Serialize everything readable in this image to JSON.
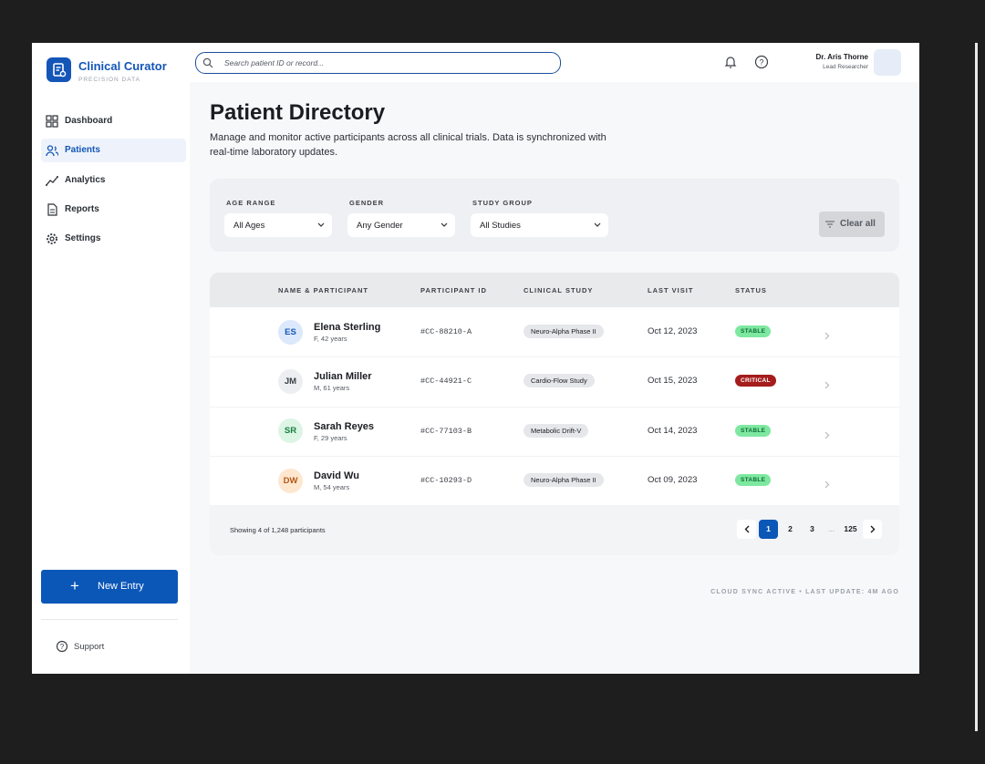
{
  "sidebar": {
    "brand": "Clinical Curator",
    "tagline": "PRECISION DATA",
    "nav": [
      "Dashboard",
      "Patients",
      "Analytics",
      "Reports",
      "Settings"
    ],
    "new_entry": "New Entry",
    "support": "Support"
  },
  "header": {
    "search_placeholder": "Search patient ID or record...",
    "user_name": "Dr. Aris Thorne",
    "user_role": "Lead Researcher"
  },
  "page": {
    "title": "Patient Directory",
    "description": "Manage and monitor active participants across all clinical trials. Data is synchronized with real-time laboratory updates."
  },
  "filters": [
    {
      "label": "AGE RANGE",
      "value": "All Ages"
    },
    {
      "label": "GENDER",
      "value": "Any Gender"
    },
    {
      "label": "STUDY GROUP",
      "value": "All Studies"
    }
  ],
  "clear_all": "Clear all",
  "table": {
    "columns": [
      "NAME & PARTICIPANT",
      "PARTICIPANT ID",
      "CLINICAL STUDY",
      "LAST VISIT",
      "STATUS"
    ],
    "rows": [
      {
        "initials": "ES",
        "name": "Elena Sterling",
        "details": "F, 42 years",
        "id": "#CC-88210-A",
        "study": "Neuro-Alpha Phase II",
        "last_visit": "Oct 12, 2023",
        "status": "STABLE",
        "avatar_color": "#dce8fb",
        "avatar_text_color": "#1456b8",
        "status_color": "#7ee8a0",
        "status_text_color": "#0d6b35"
      },
      {
        "initials": "JM",
        "name": "Julian Miller",
        "details": "M, 61 years",
        "id": "#CC-44921-C",
        "study": "Cardio-Flow Study",
        "last_visit": "Oct 15, 2023",
        "status": "CRITICAL",
        "avatar_color": "#eceef1",
        "avatar_text_color": "#3b3f46",
        "status_color": "#a51c1c",
        "status_text_color": "#ffffff"
      },
      {
        "initials": "SR",
        "name": "Sarah Reyes",
        "details": "F, 29 years",
        "id": "#CC-77103-B",
        "study": "Metabolic Drift-V",
        "last_visit": "Oct 14, 2023",
        "status": "STABLE",
        "avatar_color": "#dcf5e4",
        "avatar_text_color": "#17803f",
        "status_color": "#7ee8a0",
        "status_text_color": "#0d6b35"
      },
      {
        "initials": "DW",
        "name": "David Wu",
        "details": "M, 54 years",
        "id": "#CC-10293-D",
        "study": "Neuro-Alpha Phase II",
        "last_visit": "Oct 09, 2023",
        "status": "STABLE",
        "avatar_color": "#fde7cf",
        "avatar_text_color": "#b4591a",
        "status_color": "#7ee8a0",
        "status_text_color": "#0d6b35"
      }
    ]
  },
  "footer": {
    "showing": "Showing 4 of 1,248 participants",
    "pages": [
      "1",
      "2",
      "3",
      "...",
      "125"
    ]
  },
  "sync_status": "CLOUD SYNC ACTIVE • LAST UPDATE: 4M AGO"
}
